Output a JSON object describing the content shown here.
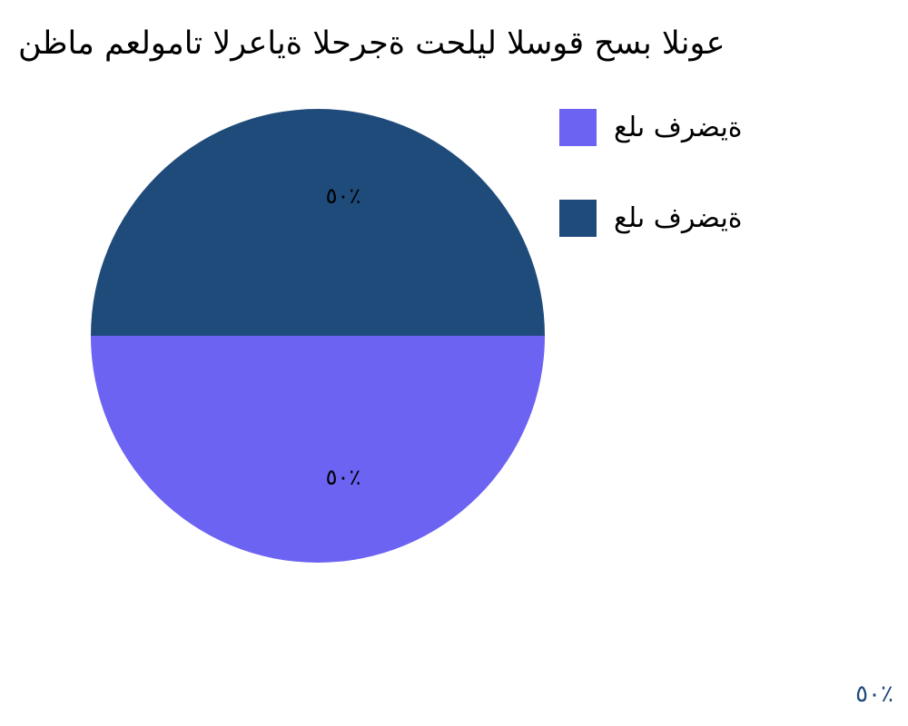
{
  "chart_data": {
    "type": "pie",
    "title": "نظام معلومات الرعاية الحرجة تحليل السوق حسب النوع",
    "slices": [
      {
        "name": "على فرضية",
        "value": 50,
        "label": "٥٠٪",
        "color": "#6c63f2"
      },
      {
        "name": "على فرضية",
        "value": 50,
        "label": "٥٠٪",
        "color": "#1f4b7a"
      }
    ],
    "legend": "right"
  },
  "watermark": "٥٠٪"
}
